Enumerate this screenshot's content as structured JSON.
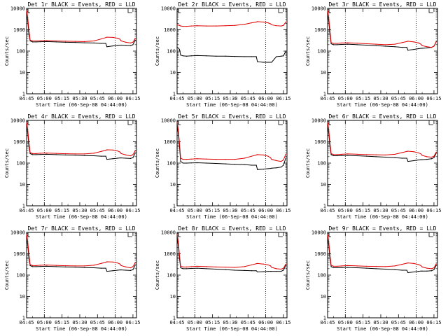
{
  "figure": {
    "background": "#ffffff",
    "event_color": "#000000",
    "lld_color": "#e00000",
    "panel_titles": [
      "Det 1r BLACK = Events, RED = LLD",
      "Det 2r BLACK = Events, RED = LLD",
      "Det 3r BLACK = Events, RED = LLD",
      "Det 4r BLACK = Events, RED = LLD",
      "Det 5r BLACK = Events, RED = LLD",
      "Det 6r BLACK = Events, RED = LLD",
      "Det 7r BLACK = Events, RED = LLD",
      "Det 8r BLACK = Events, RED = LLD",
      "Det 9r BLACK = Events, RED = LLD"
    ],
    "xlabel": "Start Time (06-Sep-08 04:44:00)",
    "ylabel": "Counts/sec"
  },
  "chart_data": {
    "type": "line",
    "grid": false,
    "yscale": "log",
    "ylim": [
      1,
      10000
    ],
    "ytick_labels": [
      "1",
      "10",
      "100",
      "1000",
      "10000"
    ],
    "xlim_minutes_after_04_00": [
      45,
      138
    ],
    "xtick_labels": [
      "04:45",
      "05:00",
      "05:15",
      "05:30",
      "05:45",
      "06:00",
      "06:15"
    ],
    "vertical_dotted_lines": [
      "05:00",
      "06:00"
    ],
    "x_minutes": [
      45,
      46,
      47,
      48,
      50,
      53,
      57,
      62,
      70,
      78,
      86,
      94,
      102,
      108,
      112,
      113,
      118,
      122,
      124,
      125,
      129,
      133,
      135,
      137
    ],
    "panels": [
      {
        "det": "1r",
        "series": [
          {
            "name": "Events",
            "values": [
              6000,
              2500,
              600,
              300,
              270,
              270,
              275,
              280,
              270,
              260,
              255,
              245,
              240,
              230,
              230,
              160,
              175,
              185,
              190,
              190,
              185,
              180,
              200,
              330
            ]
          },
          {
            "name": "LLD",
            "values": [
              8000,
              3500,
              900,
              330,
              300,
              300,
              305,
              310,
              300,
              290,
              285,
              280,
              300,
              370,
              430,
              450,
              440,
              400,
              360,
              300,
              260,
              240,
              260,
              400
            ]
          }
        ]
      },
      {
        "det": "2r",
        "series": [
          {
            "name": "Events",
            "values": [
              150,
              140,
              120,
              65,
              60,
              58,
              60,
              62,
              60,
              58,
              58,
              56,
              55,
              55,
              55,
              32,
              30,
              30,
              30,
              30,
              55,
              58,
              60,
              100
            ]
          },
          {
            "name": "LLD",
            "values": [
              1700,
              1650,
              1600,
              1500,
              1450,
              1450,
              1500,
              1550,
              1500,
              1500,
              1550,
              1600,
              1800,
              2100,
              2300,
              2400,
              2300,
              2100,
              1900,
              1700,
              1550,
              1500,
              1600,
              2300
            ]
          }
        ]
      },
      {
        "det": "3r",
        "series": [
          {
            "name": "Events",
            "values": [
              6000,
              2500,
              600,
              220,
              200,
              200,
              205,
              210,
              200,
              190,
              180,
              170,
              160,
              150,
              150,
              110,
              120,
              130,
              135,
              135,
              140,
              150,
              170,
              280
            ]
          },
          {
            "name": "LLD",
            "values": [
              8000,
              3500,
              900,
              250,
              230,
              230,
              240,
              245,
              235,
              220,
              210,
              200,
              210,
              250,
              280,
              290,
              270,
              240,
              210,
              180,
              160,
              150,
              170,
              280
            ]
          }
        ]
      },
      {
        "det": "4r",
        "series": [
          {
            "name": "Events",
            "values": [
              6000,
              2500,
              600,
              280,
              250,
              250,
              255,
              260,
              250,
              240,
              235,
              225,
              220,
              210,
              210,
              150,
              160,
              170,
              175,
              175,
              170,
              165,
              180,
              300
            ]
          },
          {
            "name": "LLD",
            "values": [
              8000,
              3500,
              900,
              310,
              280,
              280,
              290,
              295,
              285,
              275,
              270,
              270,
              290,
              350,
              400,
              420,
              410,
              370,
              330,
              280,
              240,
              220,
              250,
              380
            ]
          }
        ]
      },
      {
        "det": "5r",
        "series": [
          {
            "name": "Events",
            "values": [
              6000,
              2500,
              600,
              120,
              100,
              100,
              102,
              104,
              100,
              96,
              92,
              88,
              85,
              80,
              80,
              50,
              52,
              55,
              56,
              58,
              60,
              65,
              80,
              170
            ]
          },
          {
            "name": "LLD",
            "values": [
              8000,
              3500,
              900,
              170,
              150,
              150,
              155,
              160,
              155,
              150,
              150,
              150,
              170,
              210,
              240,
              250,
              240,
              210,
              180,
              150,
              130,
              120,
              140,
              260
            ]
          }
        ]
      },
      {
        "det": "6r",
        "series": [
          {
            "name": "Events",
            "values": [
              6000,
              2500,
              600,
              250,
              220,
              220,
              225,
              230,
              220,
              210,
              200,
              190,
              180,
              170,
              170,
              120,
              130,
              140,
              145,
              145,
              150,
              160,
              180,
              300
            ]
          },
          {
            "name": "LLD",
            "values": [
              8000,
              3500,
              900,
              280,
              250,
              250,
              260,
              270,
              260,
              250,
              245,
              240,
              260,
              310,
              350,
              360,
              340,
              300,
              270,
              230,
              200,
              190,
              210,
              330
            ]
          }
        ]
      },
      {
        "det": "7r",
        "series": [
          {
            "name": "Events",
            "values": [
              6000,
              2500,
              600,
              280,
              250,
              250,
              255,
              260,
              250,
              240,
              235,
              225,
              220,
              210,
              210,
              150,
              160,
              170,
              175,
              175,
              170,
              165,
              180,
              300
            ]
          },
          {
            "name": "LLD",
            "values": [
              8000,
              3500,
              900,
              310,
              280,
              280,
              290,
              295,
              285,
              275,
              270,
              270,
              290,
              350,
              400,
              420,
              410,
              370,
              330,
              280,
              240,
              220,
              250,
              380
            ]
          }
        ]
      },
      {
        "det": "8r",
        "series": [
          {
            "name": "Events",
            "values": [
              6000,
              2500,
              600,
              220,
              200,
              200,
              205,
              210,
              200,
              190,
              180,
              170,
              165,
              160,
              160,
              140,
              145,
              150,
              150,
              150,
              150,
              150,
              170,
              280
            ]
          },
          {
            "name": "LLD",
            "values": [
              8000,
              3500,
              900,
              260,
              240,
              240,
              250,
              260,
              250,
              240,
              235,
              230,
              250,
              300,
              340,
              350,
              330,
              300,
              270,
              230,
              200,
              190,
              210,
              330
            ]
          }
        ]
      },
      {
        "det": "9r",
        "series": [
          {
            "name": "Events",
            "values": [
              6000,
              2500,
              600,
              250,
              220,
              220,
              225,
              230,
              220,
              210,
              200,
              190,
              180,
              170,
              170,
              130,
              140,
              150,
              155,
              155,
              155,
              160,
              180,
              290
            ]
          },
          {
            "name": "LLD",
            "values": [
              8000,
              3500,
              900,
              290,
              260,
              260,
              270,
              280,
              270,
              260,
              255,
              250,
              270,
              320,
              360,
              370,
              350,
              310,
              280,
              240,
              210,
              200,
              220,
              340
            ]
          }
        ]
      }
    ]
  }
}
